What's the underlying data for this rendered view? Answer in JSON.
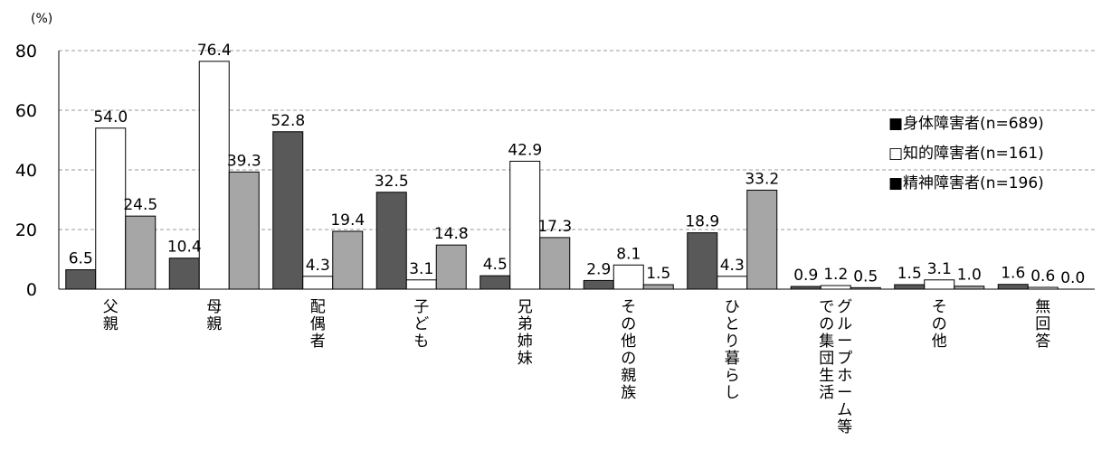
{
  "chart_data": {
    "type": "bar",
    "unit_label": "(%)",
    "ylim": [
      0,
      80
    ],
    "yticks": [
      "0",
      "20",
      "40",
      "60",
      "80"
    ],
    "grid": true,
    "legend_position": "right",
    "categories": [
      "父親",
      "母親",
      "配偶者",
      "子ども",
      "兄弟姉妹",
      "その他の親族",
      "ひとり暮らし",
      "グループホーム等での集団生活",
      "その他",
      "無回答"
    ],
    "category_lines": [
      [
        "父親"
      ],
      [
        "母親"
      ],
      [
        "配偶者"
      ],
      [
        "子ども"
      ],
      [
        "兄弟姉妹"
      ],
      [
        "その他の親族"
      ],
      [
        "ひとり暮らし"
      ],
      [
        "グループホーム等",
        "での集団生活"
      ],
      [
        "その他"
      ],
      [
        "無回答"
      ]
    ],
    "series": [
      {
        "name": "身体障害者(n=689)",
        "values": [
          6.5,
          10.4,
          52.8,
          32.5,
          4.5,
          2.9,
          18.9,
          0.9,
          1.5,
          1.6
        ],
        "labels": [
          "6.5",
          "10.4",
          "52.8",
          "32.5",
          "4.5",
          "2.9",
          "18.9",
          "0.9",
          "1.5",
          "1.6"
        ],
        "color": "#595959",
        "marker": "■"
      },
      {
        "name": "知的障害者(n=161)",
        "values": [
          54.0,
          76.4,
          4.3,
          3.1,
          42.9,
          8.1,
          4.3,
          1.2,
          3.1,
          0.6
        ],
        "labels": [
          "54.0",
          "76.4",
          "4.3",
          "3.1",
          "42.9",
          "8.1",
          "4.3",
          "1.2",
          "3.1",
          "0.6"
        ],
        "color": "#ffffff",
        "marker": "□"
      },
      {
        "name": "精神障害者(n=196)",
        "values": [
          24.5,
          39.3,
          19.4,
          14.8,
          17.3,
          1.5,
          33.2,
          0.5,
          1.0,
          0.0
        ],
        "labels": [
          "24.5",
          "39.3",
          "19.4",
          "14.8",
          "17.3",
          "1.5",
          "33.2",
          "0.5",
          "1.0",
          "0.0"
        ],
        "color": "#a6a6a6",
        "marker": "■"
      }
    ]
  }
}
